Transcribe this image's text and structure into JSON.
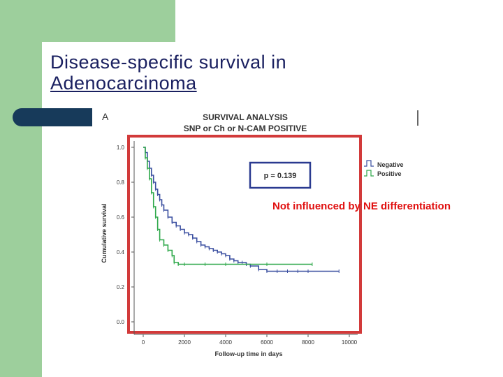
{
  "slide": {
    "title_line1": "Disease-specific survival in",
    "title_line2": "Adenocarcinoma",
    "annotation": "Not influenced by NE differentiation",
    "colors": {
      "green": "#9dcf9c",
      "navy": "#173a5a",
      "title": "#1a2060",
      "annotation": "#e01010",
      "frame": "#d23a3a"
    }
  },
  "chart_data": {
    "type": "line",
    "panel_label": "A",
    "title": "SURVIVAL ANALYSIS",
    "subtitle": "SNP or Ch or N-CAM POSITIVE",
    "xlabel": "Follow-up time in days",
    "ylabel": "Cumulative survival",
    "xlim": [
      0,
      10000
    ],
    "ylim": [
      0.0,
      1.0
    ],
    "x_ticks": [
      "0",
      "2000",
      "4000",
      "6000",
      "8000",
      "10000"
    ],
    "y_ticks": [
      "0.0",
      "0.2",
      "0.4",
      "0.6",
      "0.8",
      "1.0"
    ],
    "p_value_label": "p = 0.139",
    "legend": [
      {
        "name": "Negative",
        "color": "#3a4fa0"
      },
      {
        "name": "Positive",
        "color": "#2ea84a"
      }
    ],
    "series": [
      {
        "name": "Negative",
        "color": "#3a4fa0",
        "x": [
          0,
          100,
          200,
          300,
          400,
          500,
          600,
          700,
          800,
          900,
          1000,
          1200,
          1400,
          1600,
          1800,
          2000,
          2200,
          2400,
          2600,
          2800,
          3000,
          3200,
          3400,
          3600,
          3800,
          4000,
          4200,
          4400,
          4600,
          4800,
          5000,
          5200,
          5600,
          6000,
          6500,
          7000,
          7500,
          8000,
          9500
        ],
        "y": [
          1.0,
          0.97,
          0.92,
          0.88,
          0.84,
          0.8,
          0.76,
          0.73,
          0.7,
          0.67,
          0.64,
          0.6,
          0.57,
          0.55,
          0.53,
          0.51,
          0.5,
          0.48,
          0.46,
          0.44,
          0.43,
          0.42,
          0.41,
          0.4,
          0.39,
          0.38,
          0.36,
          0.35,
          0.34,
          0.34,
          0.33,
          0.32,
          0.3,
          0.29,
          0.29,
          0.29,
          0.29,
          0.29,
          0.29
        ]
      },
      {
        "name": "Positive",
        "color": "#2ea84a",
        "x": [
          0,
          100,
          200,
          300,
          400,
          500,
          600,
          700,
          800,
          1000,
          1200,
          1400,
          1500,
          1700,
          2000,
          3000,
          4000,
          6000,
          8200
        ],
        "y": [
          1.0,
          0.94,
          0.88,
          0.82,
          0.74,
          0.66,
          0.6,
          0.53,
          0.47,
          0.44,
          0.41,
          0.38,
          0.34,
          0.33,
          0.33,
          0.33,
          0.33,
          0.33,
          0.33
        ]
      }
    ]
  }
}
